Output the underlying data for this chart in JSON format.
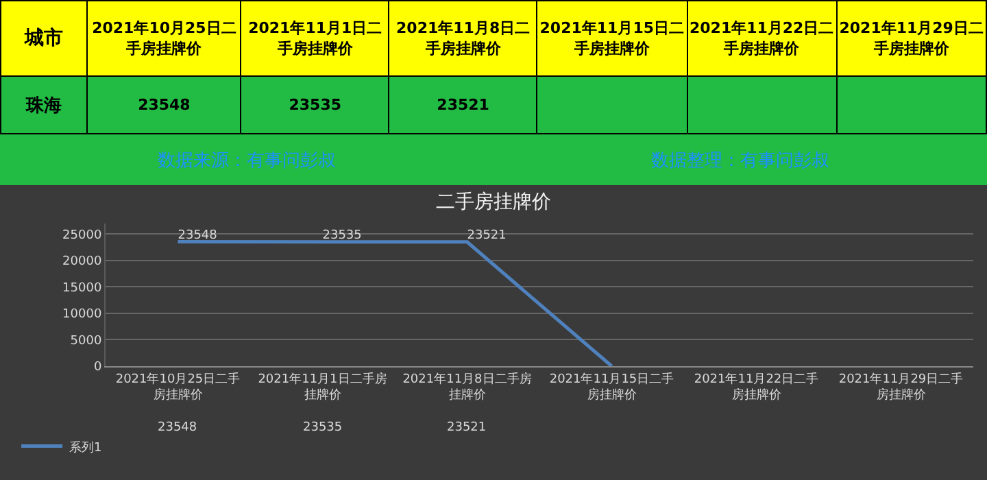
{
  "chart_data": [
    {
      "type": "other",
      "annotations": [
        "城市",
        "珠海"
      ],
      "categories": [
        "2021年10月25日二手房挂牌价",
        "2021年11月1日二手房挂牌价",
        "2021年11月8日二手房挂牌价",
        "2021年11月15日二手房挂牌价",
        "2021年11月22日二手房挂牌价",
        "2021年11月29日二手房挂牌价"
      ],
      "value_labels": [
        "23548",
        "23535",
        "23521",
        null,
        null,
        null
      ]
    },
    {
      "type": "line",
      "title": "二手房挂牌价",
      "annotations": [
        "数据来源：有事问彭叔",
        "数据整理：有事问彭叔"
      ],
      "categories": [
        "2021年10月25日二手房挂牌价",
        "2021年11月1日二手房挂牌价",
        "2021年11月8日二手房挂牌价",
        "2021年11月15日二手房挂牌价",
        "2021年11月22日二手房挂牌价",
        "2021年11月29日二手房挂牌价"
      ],
      "series": [
        {
          "name": "系列1",
          "color": "#4f81bd",
          "values": [
            23548,
            23535,
            23521,
            0,
            null,
            null
          ],
          "value_labels": [
            "23548",
            "23535",
            "23521",
            null,
            null,
            null
          ]
        }
      ],
      "ylim": [
        0,
        27000
      ],
      "yticks": [
        0,
        5000,
        10000,
        15000,
        20000,
        25000
      ],
      "grid": "y",
      "legend": "bottom left"
    }
  ]
}
